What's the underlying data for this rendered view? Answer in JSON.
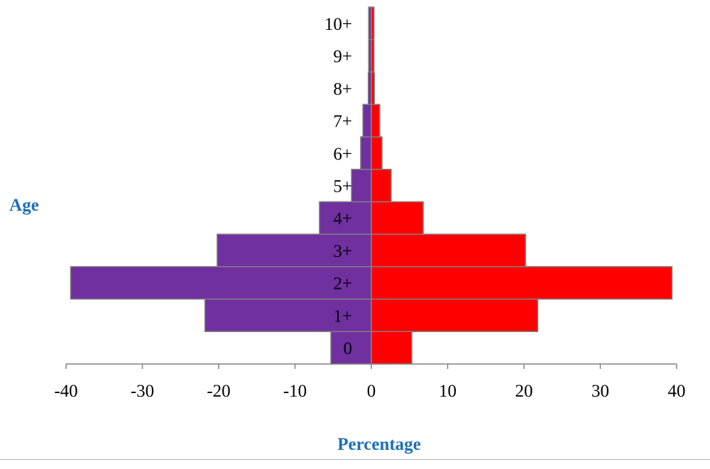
{
  "chart_data": {
    "type": "bar",
    "orientation": "horizontal-pyramid",
    "categories": [
      "0",
      "1+",
      "2+",
      "3+",
      "4+",
      "5+",
      "6+",
      "7+",
      "8+",
      "9+",
      "10+"
    ],
    "series": [
      {
        "side": "left",
        "values": [
          -5.3,
          -21.8,
          -39.4,
          -20.2,
          -6.8,
          -2.6,
          -1.4,
          -1.1,
          -0.4,
          -0.35,
          -0.35
        ]
      },
      {
        "side": "right",
        "values": [
          5.3,
          21.8,
          39.4,
          20.2,
          6.8,
          2.6,
          1.4,
          1.1,
          0.4,
          0.35,
          0.35
        ]
      }
    ],
    "xlabel": "Percentage",
    "ylabel": "Age",
    "xlim": [
      -40,
      40
    ],
    "xticks": [
      "-40",
      "-30",
      "-20",
      "-10",
      "0",
      "10",
      "20",
      "30",
      "40"
    ],
    "grid": false,
    "legend": "none"
  },
  "colors": {
    "left_series": "#7030a0",
    "right_series": "#ff0000",
    "bar_border": "#7f7f7f",
    "axis": "#808080",
    "axis_title": "#1f6fb5"
  }
}
